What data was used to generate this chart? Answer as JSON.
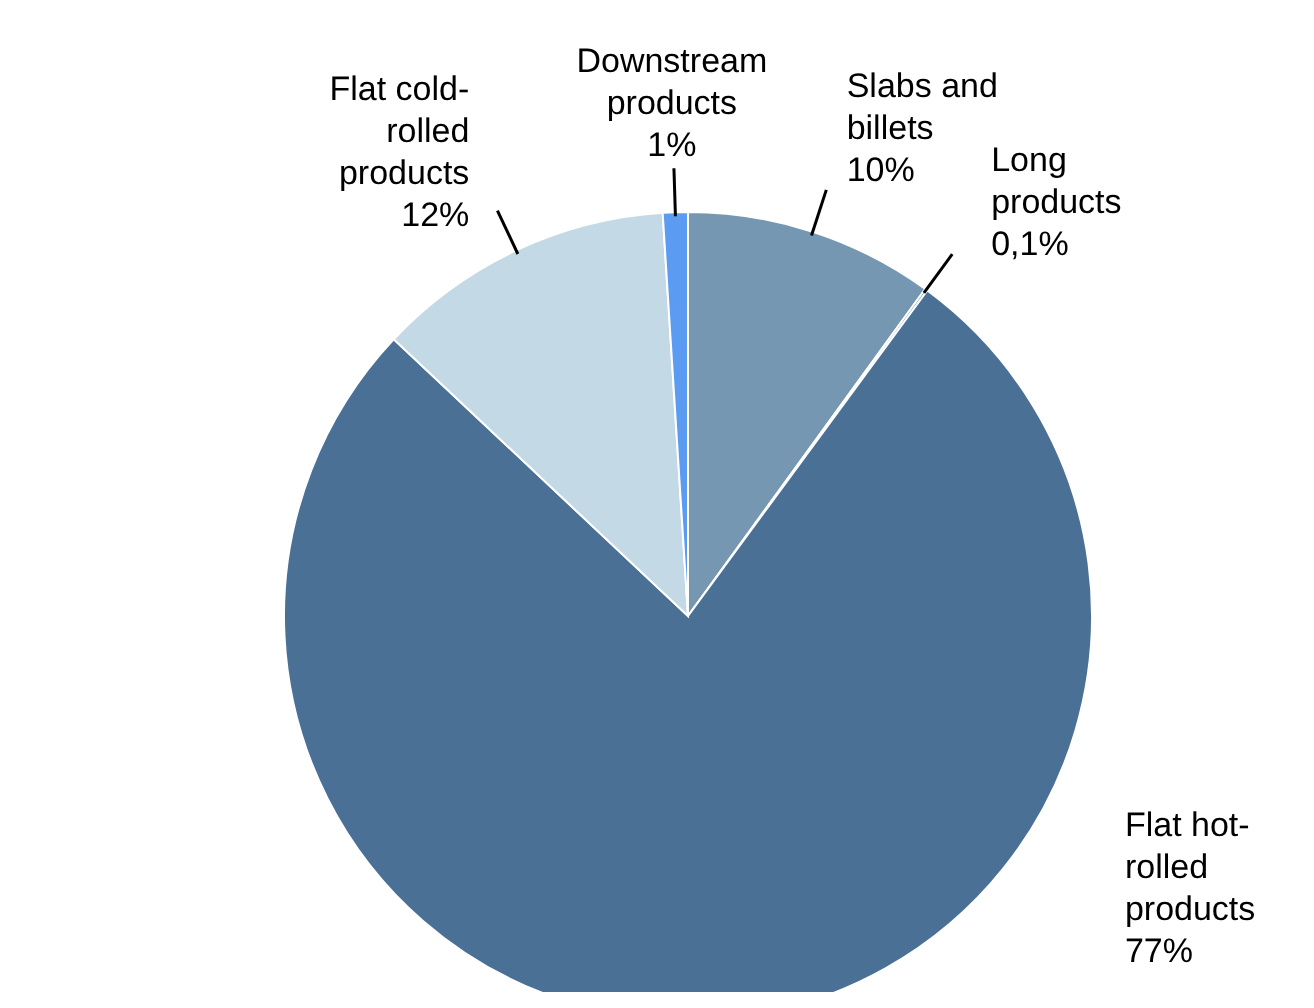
{
  "chart_data": {
    "type": "pie",
    "categories": [
      "Slabs and billets",
      "Long products",
      "Flat hot-rolled products",
      "Flat cold-rolled products",
      "Downstream products"
    ],
    "values": [
      10,
      0.1,
      77,
      12,
      1
    ],
    "value_labels": [
      "10%",
      "0,1%",
      "77%",
      "12%",
      "1%"
    ],
    "colors": [
      "#7597b1",
      "#4a7095",
      "#4a7095",
      "#c3d9e5",
      "#5b9cf2"
    ],
    "legend": false
  }
}
